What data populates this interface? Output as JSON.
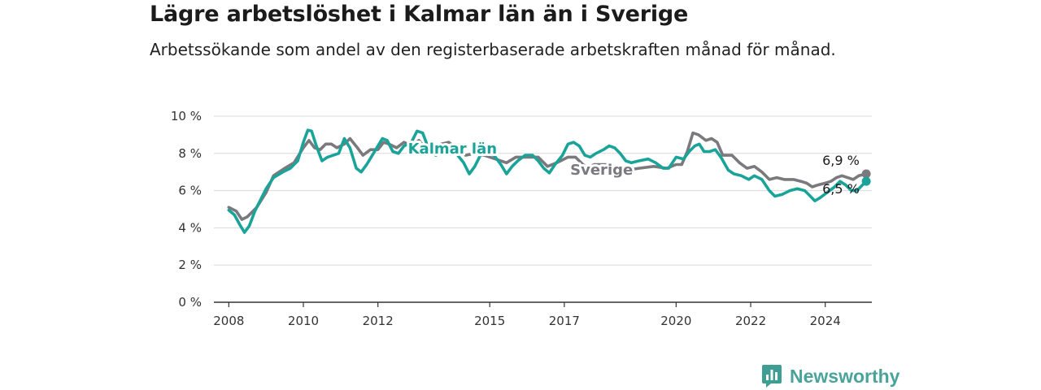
{
  "title": "Lägre arbetslöshet i Kalmar län än i Sverige",
  "subtitle": "Arbetssökande som andel av den registerbaserade arbetskraften månad för månad.",
  "brand": {
    "name": "Newsworthy",
    "icon": "newsworthy-logo-icon",
    "color": "#3f9e93"
  },
  "chart_data": {
    "type": "line",
    "title": "Lägre arbetslöshet i Kalmar län än i Sverige",
    "ylim": [
      0,
      10
    ],
    "y_ticks": [
      0,
      2,
      4,
      6,
      8,
      10
    ],
    "y_tick_labels": [
      "0 %",
      "2 %",
      "4 %",
      "6 %",
      "8 %",
      "10 %"
    ],
    "xlim": [
      2007.6,
      2025.25
    ],
    "x_ticks": [
      2008,
      2010,
      2012,
      2015,
      2017,
      2020,
      2022,
      2024
    ],
    "x_tick_labels": [
      "2008",
      "2010",
      "2012",
      "2015",
      "2017",
      "2020",
      "2022",
      "2024"
    ],
    "grid": true,
    "legend": "direct labels on lines",
    "series": [
      {
        "name": "Sverige",
        "color": "#7a7a7e",
        "end_label": "6,9 %",
        "points": [
          [
            2008.0,
            5.1
          ],
          [
            2008.2,
            4.9
          ],
          [
            2008.35,
            4.45
          ],
          [
            2008.5,
            4.6
          ],
          [
            2008.75,
            5.1
          ],
          [
            2009.0,
            5.9
          ],
          [
            2009.2,
            6.8
          ],
          [
            2009.5,
            7.2
          ],
          [
            2009.75,
            7.5
          ],
          [
            2010.0,
            8.3
          ],
          [
            2010.15,
            8.7
          ],
          [
            2010.3,
            8.3
          ],
          [
            2010.45,
            8.2
          ],
          [
            2010.6,
            8.5
          ],
          [
            2010.75,
            8.5
          ],
          [
            2010.9,
            8.3
          ],
          [
            2011.1,
            8.5
          ],
          [
            2011.25,
            8.8
          ],
          [
            2011.45,
            8.3
          ],
          [
            2011.6,
            7.9
          ],
          [
            2011.8,
            8.2
          ],
          [
            2012.0,
            8.2
          ],
          [
            2012.15,
            8.6
          ],
          [
            2012.3,
            8.5
          ],
          [
            2012.5,
            8.3
          ],
          [
            2012.7,
            8.6
          ],
          [
            2012.9,
            8.4
          ],
          [
            2013.1,
            8.7
          ],
          [
            2013.3,
            8.2
          ],
          [
            2013.5,
            8.3
          ],
          [
            2013.7,
            8.5
          ],
          [
            2013.9,
            8.6
          ],
          [
            2014.15,
            8.2
          ],
          [
            2014.35,
            7.9
          ],
          [
            2014.6,
            8.0
          ],
          [
            2014.85,
            7.9
          ],
          [
            2015.15,
            7.7
          ],
          [
            2015.45,
            7.5
          ],
          [
            2015.7,
            7.8
          ],
          [
            2016.0,
            7.8
          ],
          [
            2016.3,
            7.8
          ],
          [
            2016.55,
            7.3
          ],
          [
            2016.8,
            7.5
          ],
          [
            2017.1,
            7.8
          ],
          [
            2017.3,
            7.8
          ],
          [
            2017.5,
            7.4
          ],
          [
            2017.65,
            7.2
          ],
          [
            2017.8,
            7.4
          ],
          [
            2018.0,
            7.4
          ],
          [
            2018.2,
            7.4
          ],
          [
            2018.45,
            7.2
          ],
          [
            2018.7,
            7.1
          ],
          [
            2019.0,
            7.2
          ],
          [
            2019.4,
            7.3
          ],
          [
            2019.75,
            7.2
          ],
          [
            2020.0,
            7.4
          ],
          [
            2020.15,
            7.4
          ],
          [
            2020.3,
            8.1
          ],
          [
            2020.45,
            9.1
          ],
          [
            2020.6,
            9.0
          ],
          [
            2020.8,
            8.7
          ],
          [
            2020.95,
            8.8
          ],
          [
            2021.1,
            8.6
          ],
          [
            2021.25,
            7.9
          ],
          [
            2021.5,
            7.9
          ],
          [
            2021.7,
            7.5
          ],
          [
            2021.9,
            7.2
          ],
          [
            2022.1,
            7.3
          ],
          [
            2022.3,
            7.0
          ],
          [
            2022.5,
            6.6
          ],
          [
            2022.7,
            6.7
          ],
          [
            2022.9,
            6.6
          ],
          [
            2023.15,
            6.6
          ],
          [
            2023.35,
            6.5
          ],
          [
            2023.5,
            6.4
          ],
          [
            2023.65,
            6.2
          ],
          [
            2023.8,
            6.3
          ],
          [
            2024.0,
            6.4
          ],
          [
            2024.15,
            6.5
          ],
          [
            2024.3,
            6.7
          ],
          [
            2024.45,
            6.8
          ],
          [
            2024.6,
            6.7
          ],
          [
            2024.75,
            6.6
          ],
          [
            2024.9,
            6.8
          ],
          [
            2025.1,
            6.9
          ]
        ]
      },
      {
        "name": "Kalmar län",
        "color": "#1aa398",
        "end_label": "6,5 %",
        "points": [
          [
            2008.0,
            4.95
          ],
          [
            2008.15,
            4.7
          ],
          [
            2008.3,
            4.15
          ],
          [
            2008.42,
            3.75
          ],
          [
            2008.55,
            4.1
          ],
          [
            2008.7,
            4.9
          ],
          [
            2008.85,
            5.5
          ],
          [
            2009.0,
            6.1
          ],
          [
            2009.2,
            6.7
          ],
          [
            2009.45,
            7.0
          ],
          [
            2009.65,
            7.2
          ],
          [
            2009.85,
            7.6
          ],
          [
            2010.0,
            8.6
          ],
          [
            2010.12,
            9.25
          ],
          [
            2010.22,
            9.2
          ],
          [
            2010.35,
            8.4
          ],
          [
            2010.5,
            7.6
          ],
          [
            2010.65,
            7.8
          ],
          [
            2010.8,
            7.9
          ],
          [
            2010.95,
            8.0
          ],
          [
            2011.1,
            8.8
          ],
          [
            2011.25,
            8.3
          ],
          [
            2011.42,
            7.2
          ],
          [
            2011.55,
            7.0
          ],
          [
            2011.7,
            7.4
          ],
          [
            2011.85,
            7.9
          ],
          [
            2012.0,
            8.4
          ],
          [
            2012.12,
            8.8
          ],
          [
            2012.25,
            8.7
          ],
          [
            2012.4,
            8.1
          ],
          [
            2012.55,
            8.0
          ],
          [
            2012.7,
            8.4
          ],
          [
            2012.9,
            8.6
          ],
          [
            2013.05,
            9.2
          ],
          [
            2013.2,
            9.1
          ],
          [
            2013.35,
            8.3
          ],
          [
            2013.55,
            7.9
          ],
          [
            2013.75,
            8.1
          ],
          [
            2013.9,
            8.3
          ],
          [
            2014.1,
            8.0
          ],
          [
            2014.3,
            7.5
          ],
          [
            2014.45,
            6.9
          ],
          [
            2014.6,
            7.3
          ],
          [
            2014.75,
            7.9
          ],
          [
            2014.95,
            8.2
          ],
          [
            2015.15,
            7.8
          ],
          [
            2015.3,
            7.4
          ],
          [
            2015.45,
            6.9
          ],
          [
            2015.6,
            7.3
          ],
          [
            2015.75,
            7.6
          ],
          [
            2015.95,
            7.9
          ],
          [
            2016.15,
            7.9
          ],
          [
            2016.3,
            7.6
          ],
          [
            2016.45,
            7.2
          ],
          [
            2016.6,
            6.95
          ],
          [
            2016.75,
            7.4
          ],
          [
            2016.95,
            7.9
          ],
          [
            2017.1,
            8.5
          ],
          [
            2017.25,
            8.6
          ],
          [
            2017.4,
            8.4
          ],
          [
            2017.55,
            7.9
          ],
          [
            2017.7,
            7.8
          ],
          [
            2017.85,
            8.0
          ],
          [
            2018.05,
            8.2
          ],
          [
            2018.2,
            8.4
          ],
          [
            2018.35,
            8.3
          ],
          [
            2018.5,
            8.0
          ],
          [
            2018.65,
            7.6
          ],
          [
            2018.8,
            7.5
          ],
          [
            2019.0,
            7.6
          ],
          [
            2019.25,
            7.7
          ],
          [
            2019.45,
            7.5
          ],
          [
            2019.65,
            7.2
          ],
          [
            2019.8,
            7.2
          ],
          [
            2020.0,
            7.8
          ],
          [
            2020.2,
            7.7
          ],
          [
            2020.35,
            8.1
          ],
          [
            2020.5,
            8.4
          ],
          [
            2020.62,
            8.5
          ],
          [
            2020.75,
            8.1
          ],
          [
            2020.9,
            8.1
          ],
          [
            2021.05,
            8.2
          ],
          [
            2021.2,
            7.8
          ],
          [
            2021.4,
            7.1
          ],
          [
            2021.55,
            6.9
          ],
          [
            2021.75,
            6.8
          ],
          [
            2021.95,
            6.6
          ],
          [
            2022.1,
            6.8
          ],
          [
            2022.3,
            6.6
          ],
          [
            2022.5,
            6.0
          ],
          [
            2022.65,
            5.7
          ],
          [
            2022.85,
            5.8
          ],
          [
            2023.05,
            6.0
          ],
          [
            2023.25,
            6.1
          ],
          [
            2023.45,
            6.0
          ],
          [
            2023.6,
            5.7
          ],
          [
            2023.72,
            5.45
          ],
          [
            2023.85,
            5.6
          ],
          [
            2024.05,
            5.9
          ],
          [
            2024.25,
            6.2
          ],
          [
            2024.4,
            6.5
          ],
          [
            2024.55,
            6.3
          ],
          [
            2024.7,
            6.0
          ],
          [
            2024.85,
            6.0
          ],
          [
            2025.05,
            6.4
          ],
          [
            2025.1,
            6.5
          ]
        ]
      }
    ],
    "annotations": [
      {
        "text": "Kalmar län",
        "series": "Kalmar län",
        "x": 2014.0,
        "y": 8.0
      },
      {
        "text": "Sverige",
        "series": "Sverige",
        "x": 2018.0,
        "y": 6.85
      }
    ]
  }
}
